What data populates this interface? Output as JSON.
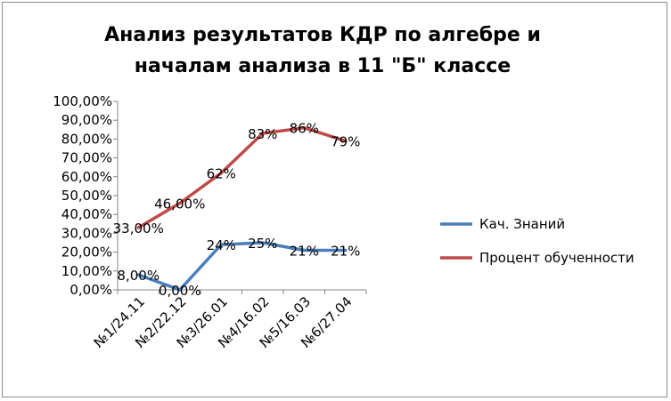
{
  "chart_data": {
    "type": "line",
    "title_lines": [
      "Анализ результатов КДР по алгебре и",
      "началам  анализа в 11 \"Б\" классе"
    ],
    "categories": [
      "№1/24.11",
      "№2/22.12",
      "№3/26.01",
      "№4/16.02",
      "№5/16.03",
      "№6/27.04"
    ],
    "y_ticks": [
      "0,00%",
      "10,00%",
      "20,00%",
      "30,00%",
      "40,00%",
      "50,00%",
      "60,00%",
      "70,00%",
      "80,00%",
      "90,00%",
      "100,00%"
    ],
    "ylim": [
      0,
      100
    ],
    "grid": false,
    "legend_position": "right",
    "series": [
      {
        "name": "Кач. Знаний",
        "color": "#4a7ebb",
        "values": [
          8,
          0,
          24,
          25,
          21,
          21
        ],
        "labels": [
          "8,00%",
          "0,00%",
          "24%",
          "25%",
          "21%",
          "21%"
        ]
      },
      {
        "name": "Процент обученности",
        "color": "#be4b48",
        "values": [
          33,
          46,
          62,
          83,
          86,
          79
        ],
        "labels": [
          "33,00%",
          "46,00%",
          "62%",
          "83%",
          "86%",
          "79%"
        ]
      }
    ]
  }
}
